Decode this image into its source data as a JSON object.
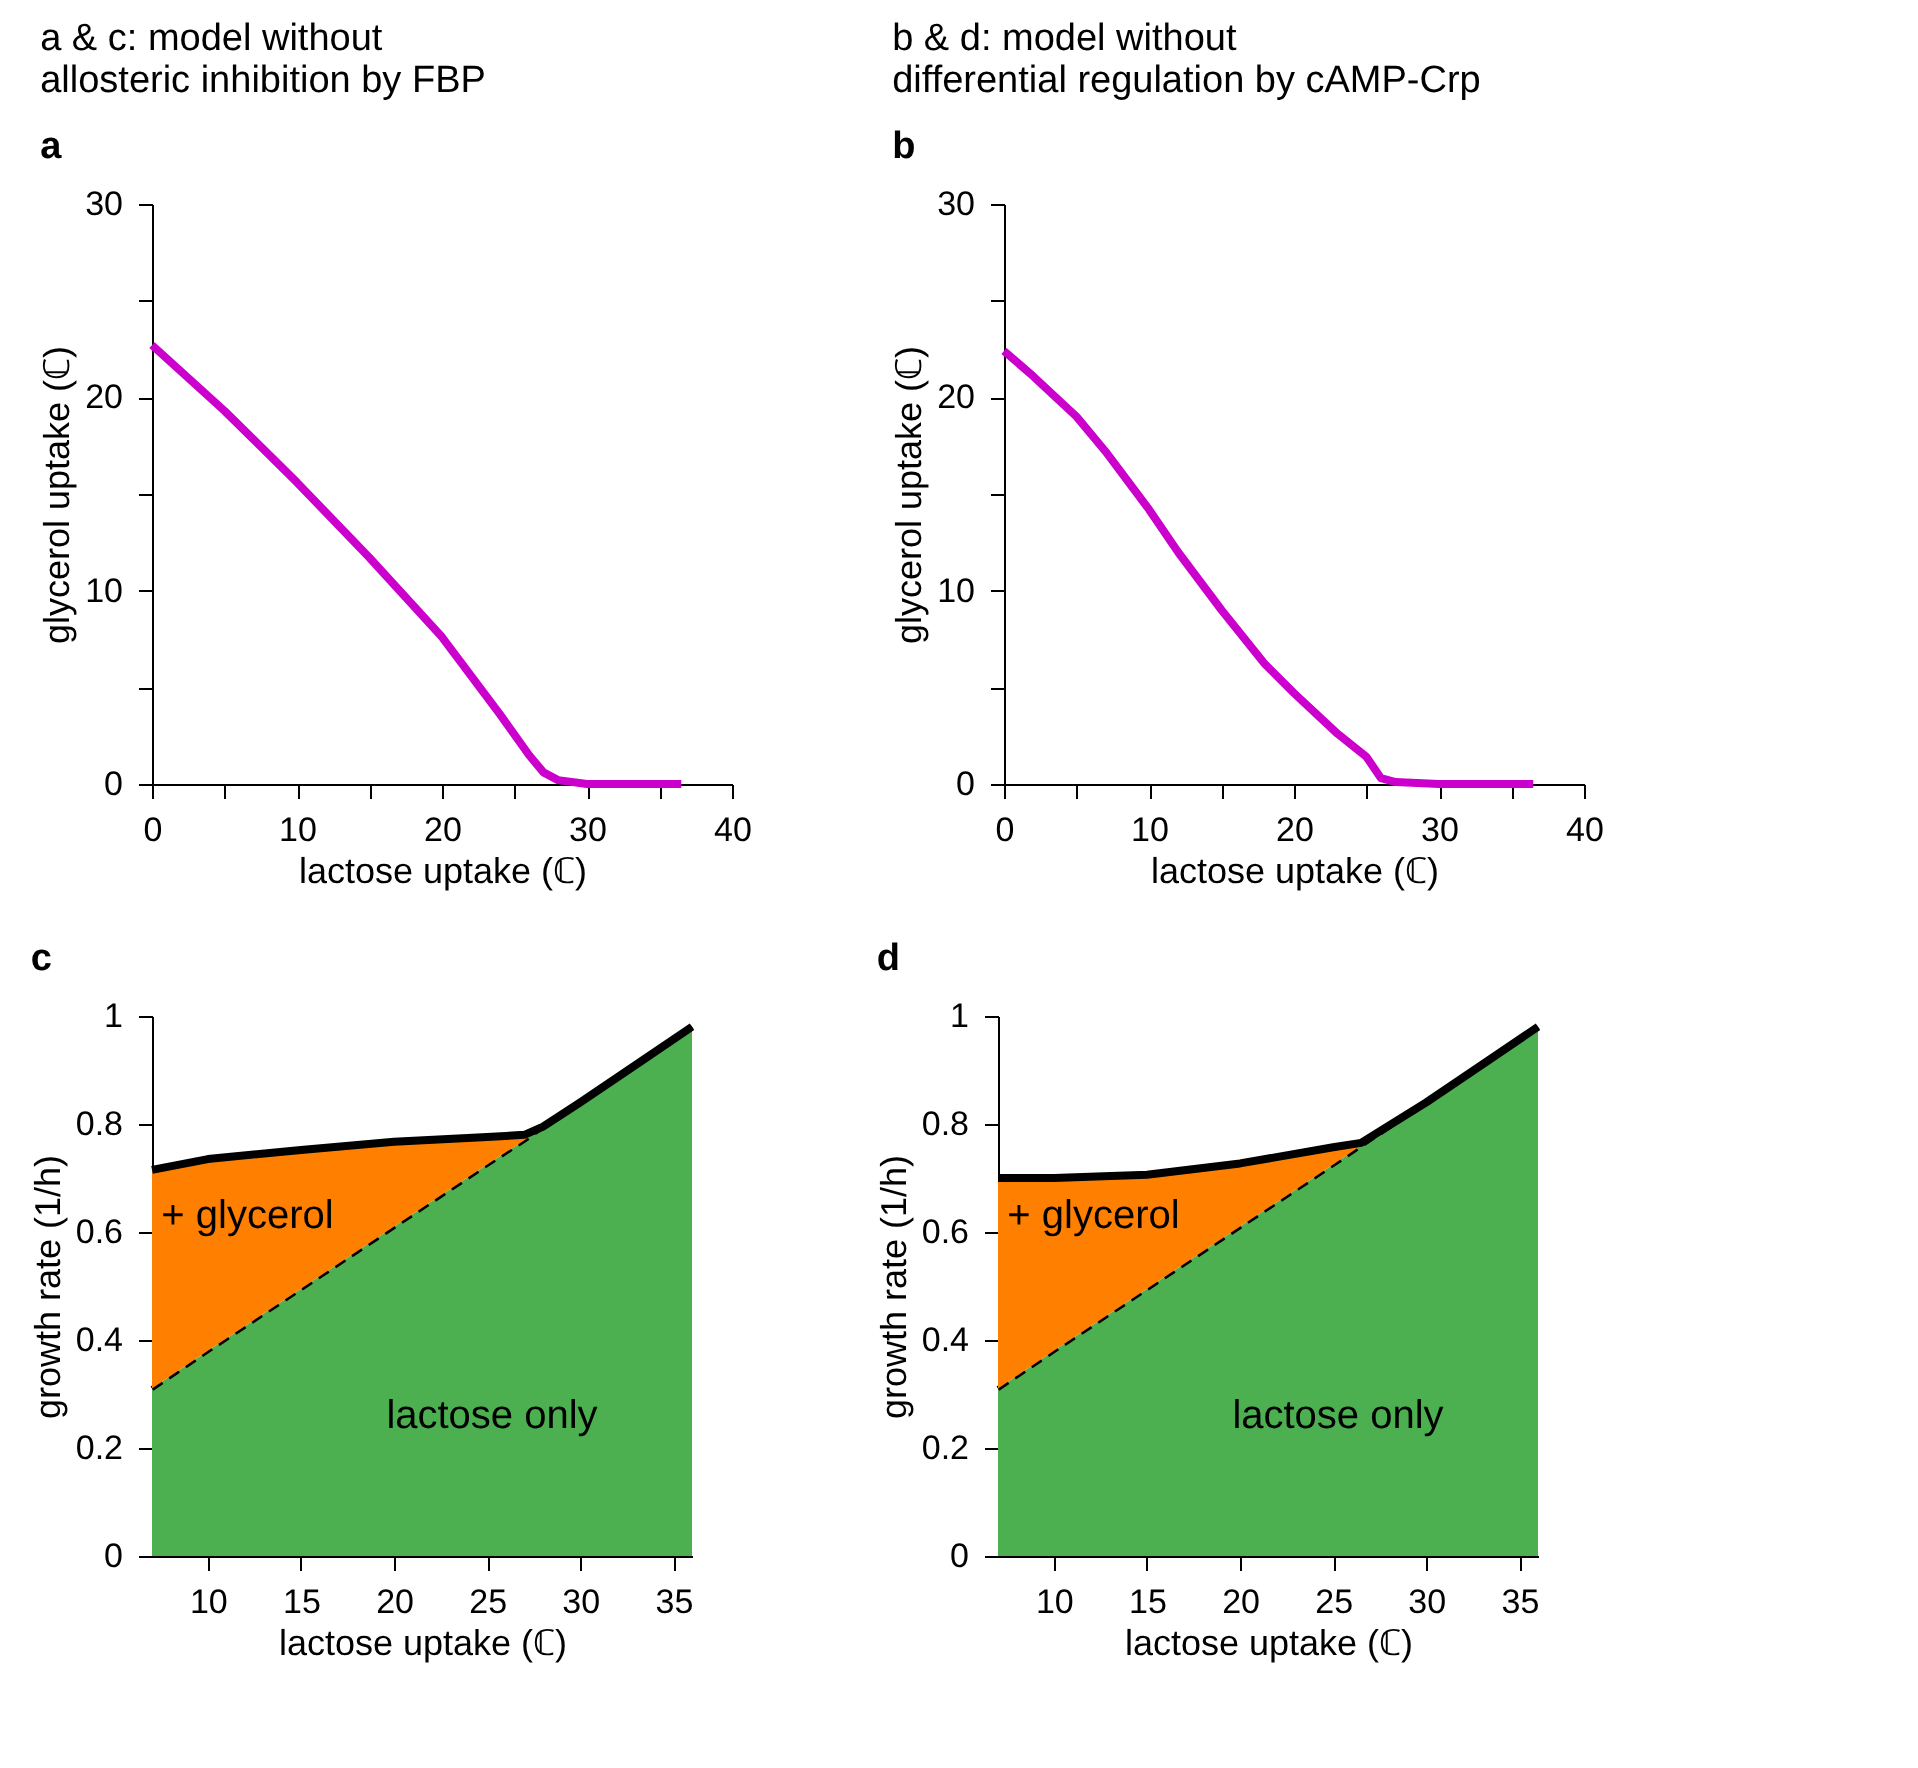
{
  "chart_data": [
    {
      "type": "line",
      "title": "a & c: model without\nallosteric inhibition by FBP",
      "subtitle": "a",
      "xlabel": "lactose uptake (ℂ)",
      "ylabel": "glycerol uptake (ℂ)",
      "xlim": [
        0,
        40
      ],
      "xticks": [
        0,
        {
          "value": 5,
          "label": null
        },
        10,
        {
          "value": 15,
          "label": null
        },
        20,
        {
          "value": 25,
          "label": null
        },
        30,
        {
          "value": 35,
          "label": null
        },
        40
      ],
      "ylim": [
        0,
        30
      ],
      "yticks": [
        0,
        {
          "value": 5,
          "label": null
        },
        10,
        {
          "value": 15,
          "label": null
        },
        20,
        {
          "value": 25,
          "label": null
        },
        30
      ],
      "series": [
        {
          "color": "#cc00cc",
          "line_style": "solid",
          "x": [
            0,
            5,
            10,
            15,
            20,
            24,
            26,
            27,
            28,
            30,
            36.5
          ],
          "values": [
            22.7,
            19.3,
            15.6,
            11.7,
            7.6,
            3.6,
            1.5,
            0.6,
            0.2,
            0,
            0
          ]
        }
      ]
    },
    {
      "type": "line",
      "title": "b & d: model without\ndifferential regulation by cAMP-Crp",
      "subtitle": "b",
      "xlabel": "lactose uptake (ℂ)",
      "ylabel": "glycerol uptake (ℂ)",
      "xlim": [
        0,
        40
      ],
      "xticks": [
        0,
        {
          "value": 5,
          "label": null
        },
        10,
        {
          "value": 15,
          "label": null
        },
        20,
        {
          "value": 25,
          "label": null
        },
        30,
        {
          "value": 35,
          "label": null
        },
        40
      ],
      "ylim": [
        0,
        30
      ],
      "yticks": [
        0,
        {
          "value": 5,
          "label": null
        },
        10,
        {
          "value": 15,
          "label": null
        },
        20,
        {
          "value": 25,
          "label": null
        },
        30
      ],
      "series": [
        {
          "color": "#cc00cc",
          "line_style": "solid",
          "x": [
            0,
            2,
            5,
            7,
            10,
            12,
            15,
            18,
            20,
            23,
            25,
            26,
            27,
            30,
            36.5
          ],
          "values": [
            22.4,
            21.1,
            19.0,
            17.2,
            14.2,
            12.0,
            9.0,
            6.2,
            4.7,
            2.6,
            1.4,
            0.3,
            0.1,
            0,
            0
          ]
        }
      ]
    },
    {
      "type": "area",
      "stacked": true,
      "title": "c",
      "xlabel": "lactose uptake (ℂ)",
      "ylabel": "growth rate (1/h)",
      "xlim": [
        7,
        36
      ],
      "xticks": [
        10,
        15,
        20,
        25,
        30,
        35
      ],
      "ylim": [
        0,
        1
      ],
      "yticks": [
        0,
        0.2,
        0.4,
        0.6,
        0.8,
        1
      ],
      "annotations": [
        {
          "text": "+ glycerol",
          "x": 7.5,
          "y": 0.63
        },
        "lactose only"
      ],
      "series": [
        {
          "color": "#4caf50",
          "line_style": "dashed",
          "x": [
            7,
            10,
            15,
            20,
            25,
            27,
            28,
            30,
            33,
            36
          ],
          "values": [
            0.31,
            0.38,
            0.495,
            0.61,
            0.725,
            0.77,
            0.795,
            0.84,
            0.91,
            0.98
          ]
        },
        {
          "color": "#ff8000",
          "line_style": "solid",
          "x": [
            7,
            10,
            15,
            20,
            25,
            27,
            28,
            30,
            33,
            36
          ],
          "values": [
            0.405,
            0.355,
            0.257,
            0.157,
            0.051,
            0.01,
            0,
            0,
            0,
            0
          ]
        }
      ]
    },
    {
      "type": "area",
      "stacked": true,
      "title": "d",
      "xlabel": "lactose uptake (ℂ)",
      "ylabel": "growth rate (1/h)",
      "xlim": [
        7,
        36
      ],
      "xticks": [
        10,
        15,
        20,
        25,
        30,
        35
      ],
      "ylim": [
        0,
        1
      ],
      "yticks": [
        0,
        0.2,
        0.4,
        0.6,
        0.8,
        1
      ],
      "annotations": [
        {
          "text": "+ glycerol",
          "x": 7.5,
          "y": 0.63
        },
        "lactose only"
      ],
      "series": [
        {
          "color": "#4caf50",
          "line_style": "dashed",
          "x": [
            7,
            10,
            15,
            20,
            25,
            26.5,
            30,
            33,
            36
          ],
          "values": [
            0.31,
            0.38,
            0.495,
            0.61,
            0.725,
            0.76,
            0.84,
            0.91,
            0.98
          ]
        },
        {
          "color": "#ff8000",
          "line_style": "solid",
          "x": [
            7,
            10,
            15,
            20,
            25,
            26.5,
            30,
            33,
            36
          ],
          "values": [
            0.39,
            0.32,
            0.211,
            0.117,
            0.032,
            0.005,
            0,
            0,
            0
          ]
        }
      ]
    }
  ]
}
